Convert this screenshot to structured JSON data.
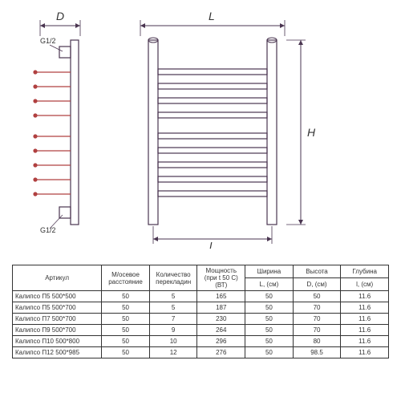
{
  "labels": {
    "D": "D",
    "L": "L",
    "H": "H",
    "l_lower": "l",
    "G12_top": "G1/2",
    "G12_bot": "G1/2"
  },
  "table": {
    "headers": {
      "article": "Артикул",
      "spacing": "М/осевое расстояние",
      "bars": "Количество перекладин",
      "power": "Мощность (при t 50 C) (ВТ)",
      "width": "Ширина",
      "height": "Высота",
      "depth": "Глубина",
      "L_cm": "L, (см)",
      "D_cm": "D, (см)",
      "l_cm": "l, (см)"
    },
    "rows": [
      [
        "Калипсо П5 500*500",
        "50",
        "5",
        "165",
        "50",
        "50",
        "11.6"
      ],
      [
        "Калипсо П5 500*700",
        "50",
        "5",
        "187",
        "50",
        "70",
        "11.6"
      ],
      [
        "Калипсо П7 500*700",
        "50",
        "7",
        "230",
        "50",
        "70",
        "11.6"
      ],
      [
        "Калипсо П9 500*700",
        "50",
        "9",
        "264",
        "50",
        "70",
        "11.6"
      ],
      [
        "Калипсо П10 500*800",
        "50",
        "10",
        "296",
        "50",
        "80",
        "11.6"
      ],
      [
        "Калипсо П12 500*985",
        "50",
        "12",
        "276",
        "50",
        "98.5",
        "11.6"
      ]
    ]
  },
  "style": {
    "stroke_main": "#4a3550",
    "stroke_red": "#b04040",
    "stroke_width": 1.2,
    "font_label": 14,
    "font_small": 9,
    "background": "#ffffff"
  }
}
